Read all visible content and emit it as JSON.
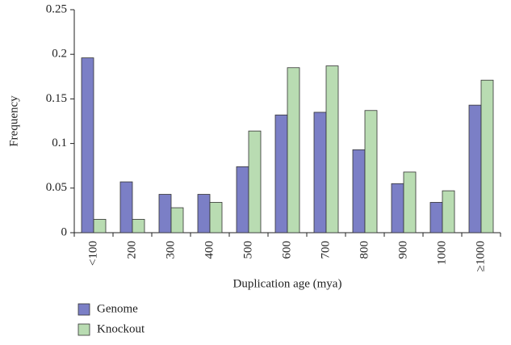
{
  "chart_data": {
    "type": "bar",
    "x_label": "Duplication age (mya)",
    "y_label": "Frequency",
    "categories": [
      "<100",
      "200",
      "300",
      "400",
      "500",
      "600",
      "700",
      "800",
      "900",
      "1000",
      "≥1000"
    ],
    "series": [
      {
        "name": "Genome",
        "color": "#7b7fc6",
        "values": [
          0.196,
          0.057,
          0.043,
          0.043,
          0.074,
          0.132,
          0.135,
          0.093,
          0.055,
          0.034,
          0.143
        ]
      },
      {
        "name": "Knockout",
        "color": "#b9dcb2",
        "values": [
          0.015,
          0.015,
          0.028,
          0.034,
          0.114,
          0.185,
          0.187,
          0.137,
          0.068,
          0.047,
          0.171
        ]
      }
    ],
    "ylim": [
      0,
      0.25
    ],
    "yticks": [
      0,
      0.05,
      0.1,
      0.15,
      0.2,
      0.25
    ],
    "grid": false,
    "legend": "bottom-left"
  }
}
